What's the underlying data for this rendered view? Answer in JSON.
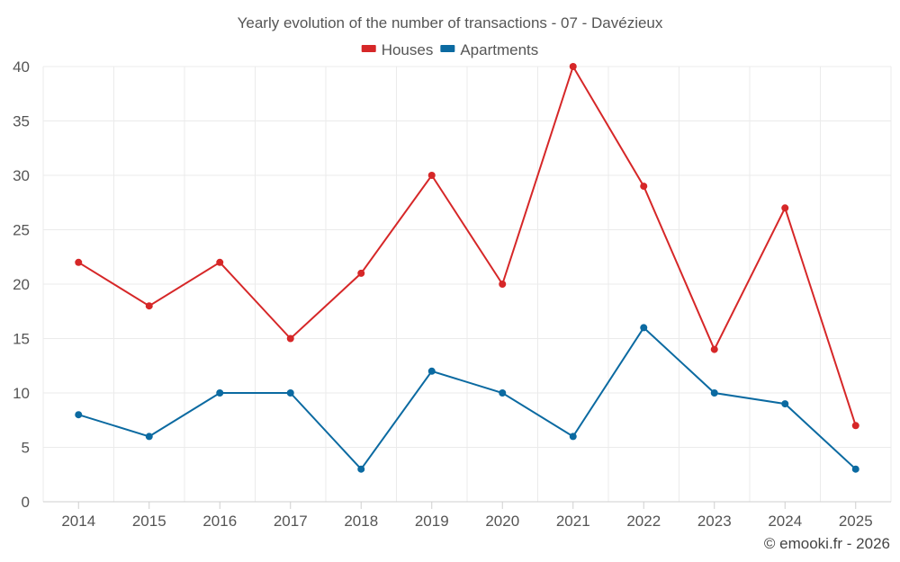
{
  "chart_data": {
    "type": "line",
    "title": "Yearly evolution of the number of transactions - 07 - Davézieux",
    "categories": [
      "2014",
      "2015",
      "2016",
      "2017",
      "2018",
      "2019",
      "2020",
      "2021",
      "2022",
      "2023",
      "2024",
      "2025"
    ],
    "series": [
      {
        "name": "Houses",
        "color": "#d62728",
        "values": [
          22,
          18,
          22,
          15,
          21,
          30,
          20,
          40,
          29,
          14,
          27,
          7
        ]
      },
      {
        "name": "Apartments",
        "color": "#0b6aa1",
        "values": [
          8,
          6,
          10,
          10,
          3,
          12,
          10,
          6,
          16,
          10,
          9,
          3
        ]
      }
    ],
    "ylim": [
      0,
      40
    ],
    "yticks": [
      0,
      5,
      10,
      15,
      20,
      25,
      30,
      35,
      40
    ],
    "grid": true,
    "legend_position": "top-center",
    "credit": "© emooki.fr - 2026"
  }
}
